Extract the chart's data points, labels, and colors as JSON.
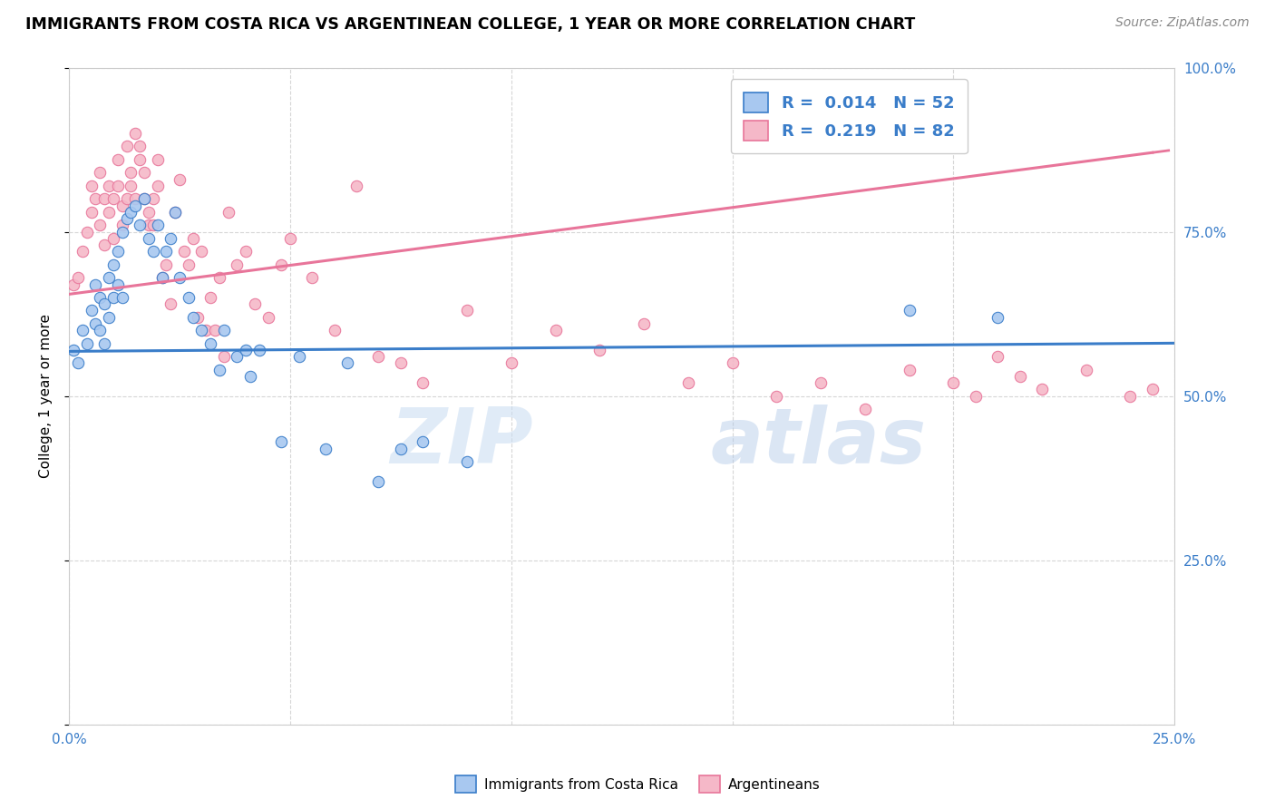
{
  "title": "IMMIGRANTS FROM COSTA RICA VS ARGENTINEAN COLLEGE, 1 YEAR OR MORE CORRELATION CHART",
  "source": "Source: ZipAtlas.com",
  "ylabel": "College, 1 year or more",
  "x_min": 0.0,
  "x_max": 0.25,
  "y_min": 0.0,
  "y_max": 1.0,
  "x_ticks": [
    0.0,
    0.05,
    0.1,
    0.15,
    0.2,
    0.25
  ],
  "y_ticks": [
    0.0,
    0.25,
    0.5,
    0.75,
    1.0
  ],
  "legend_labels": [
    "Immigrants from Costa Rica",
    "Argentineans"
  ],
  "blue_fill": "#A8C8F0",
  "pink_fill": "#F5B8C8",
  "blue_edge": "#3A7DC9",
  "pink_edge": "#E8759A",
  "watermark": "ZIPatlas",
  "R_blue": 0.014,
  "N_blue": 52,
  "R_pink": 0.219,
  "N_pink": 82,
  "blue_line_intercept": 0.568,
  "blue_line_slope": 0.05,
  "pink_line_intercept": 0.655,
  "pink_line_slope": 0.88,
  "blue_scatter_x": [
    0.001,
    0.002,
    0.003,
    0.004,
    0.005,
    0.006,
    0.006,
    0.007,
    0.007,
    0.008,
    0.008,
    0.009,
    0.009,
    0.01,
    0.01,
    0.011,
    0.011,
    0.012,
    0.012,
    0.013,
    0.014,
    0.015,
    0.016,
    0.017,
    0.018,
    0.019,
    0.02,
    0.021,
    0.022,
    0.023,
    0.024,
    0.025,
    0.027,
    0.028,
    0.03,
    0.032,
    0.034,
    0.035,
    0.038,
    0.04,
    0.041,
    0.043,
    0.048,
    0.052,
    0.058,
    0.063,
    0.07,
    0.075,
    0.08,
    0.09,
    0.19,
    0.21
  ],
  "blue_scatter_y": [
    0.57,
    0.55,
    0.6,
    0.58,
    0.63,
    0.61,
    0.67,
    0.6,
    0.65,
    0.58,
    0.64,
    0.62,
    0.68,
    0.65,
    0.7,
    0.72,
    0.67,
    0.65,
    0.75,
    0.77,
    0.78,
    0.79,
    0.76,
    0.8,
    0.74,
    0.72,
    0.76,
    0.68,
    0.72,
    0.74,
    0.78,
    0.68,
    0.65,
    0.62,
    0.6,
    0.58,
    0.54,
    0.6,
    0.56,
    0.57,
    0.53,
    0.57,
    0.43,
    0.56,
    0.42,
    0.55,
    0.37,
    0.42,
    0.43,
    0.4,
    0.63,
    0.62
  ],
  "pink_scatter_x": [
    0.001,
    0.002,
    0.003,
    0.004,
    0.005,
    0.005,
    0.006,
    0.007,
    0.007,
    0.008,
    0.008,
    0.009,
    0.009,
    0.01,
    0.01,
    0.011,
    0.011,
    0.012,
    0.012,
    0.013,
    0.013,
    0.014,
    0.014,
    0.015,
    0.015,
    0.016,
    0.016,
    0.017,
    0.017,
    0.018,
    0.018,
    0.019,
    0.019,
    0.02,
    0.02,
    0.021,
    0.022,
    0.023,
    0.024,
    0.025,
    0.026,
    0.027,
    0.028,
    0.029,
    0.03,
    0.031,
    0.032,
    0.033,
    0.034,
    0.035,
    0.036,
    0.038,
    0.04,
    0.042,
    0.045,
    0.048,
    0.05,
    0.055,
    0.06,
    0.065,
    0.07,
    0.075,
    0.08,
    0.09,
    0.1,
    0.11,
    0.12,
    0.13,
    0.14,
    0.15,
    0.16,
    0.17,
    0.18,
    0.19,
    0.2,
    0.205,
    0.21,
    0.215,
    0.22,
    0.23,
    0.24,
    0.245
  ],
  "pink_scatter_y": [
    0.67,
    0.68,
    0.72,
    0.75,
    0.78,
    0.82,
    0.8,
    0.84,
    0.76,
    0.73,
    0.8,
    0.82,
    0.78,
    0.74,
    0.8,
    0.82,
    0.86,
    0.79,
    0.76,
    0.8,
    0.88,
    0.82,
    0.84,
    0.8,
    0.9,
    0.86,
    0.88,
    0.84,
    0.8,
    0.76,
    0.78,
    0.76,
    0.8,
    0.82,
    0.86,
    0.68,
    0.7,
    0.64,
    0.78,
    0.83,
    0.72,
    0.7,
    0.74,
    0.62,
    0.72,
    0.6,
    0.65,
    0.6,
    0.68,
    0.56,
    0.78,
    0.7,
    0.72,
    0.64,
    0.62,
    0.7,
    0.74,
    0.68,
    0.6,
    0.82,
    0.56,
    0.55,
    0.52,
    0.63,
    0.55,
    0.6,
    0.57,
    0.61,
    0.52,
    0.55,
    0.5,
    0.52,
    0.48,
    0.54,
    0.52,
    0.5,
    0.56,
    0.53,
    0.51,
    0.54,
    0.5,
    0.51
  ]
}
